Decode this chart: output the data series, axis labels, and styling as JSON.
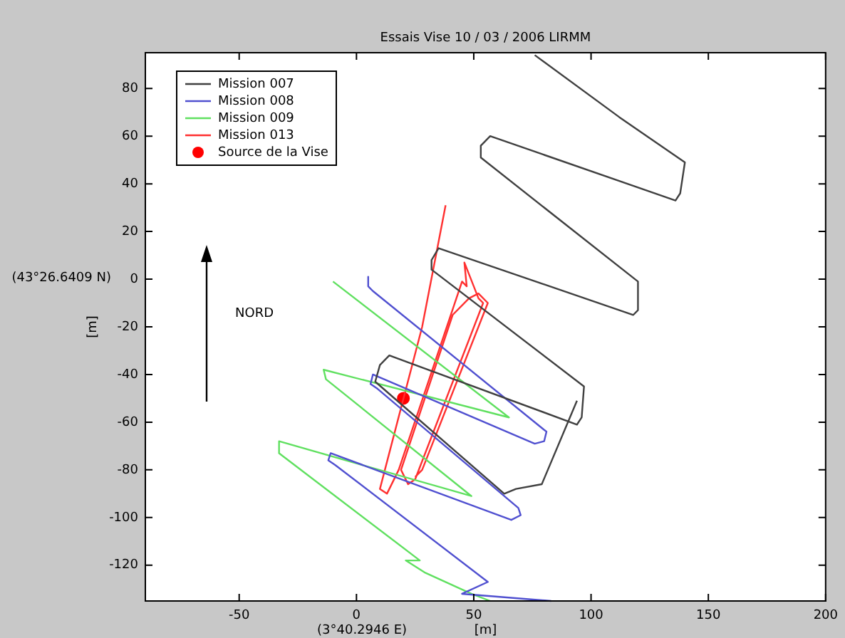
{
  "chart_data": {
    "type": "line",
    "title": "Essais Vise 10 / 03 / 2006 LIRMM",
    "xlabel": "[m]",
    "ylabel": "[m]",
    "xlim": [
      -90,
      200
    ],
    "xticks": [
      -50,
      0,
      50,
      100,
      150,
      200
    ],
    "ylim": [
      -135,
      95
    ],
    "yticks": [
      -120,
      -100,
      -80,
      -60,
      -40,
      -20,
      0,
      20,
      40,
      60,
      80
    ],
    "grid": false,
    "legend": "top left",
    "line_style": "solid",
    "annotations": [
      "(43°26.6409 N)",
      "(3°40.2946 E)",
      "NORD"
    ],
    "series": [
      {
        "name": "Mission 007",
        "type": "line",
        "marker": "none",
        "color": "#404040",
        "x": [
          76,
          112,
          140,
          138,
          136,
          57,
          53,
          53,
          120,
          120,
          118,
          35,
          32,
          32,
          97,
          96,
          94,
          14,
          10,
          8,
          63,
          68,
          79,
          94
        ],
        "values": [
          94,
          68,
          49,
          36,
          33,
          60,
          56,
          51,
          -1,
          -13,
          -15,
          13,
          8,
          4,
          -45,
          -58,
          -61,
          -32,
          -36,
          -43,
          -90,
          -88,
          -86,
          -51
        ]
      },
      {
        "name": "Mission 008",
        "type": "line",
        "marker": "none",
        "color": "#5050d0",
        "x": [
          5,
          5,
          7,
          81,
          80,
          76,
          7,
          6,
          9,
          69,
          70,
          66,
          -11,
          -12,
          -9,
          56,
          45,
          83
        ],
        "values": [
          1,
          -3,
          -5,
          -64,
          -68,
          -69,
          -40,
          -44,
          -46,
          -96,
          -99,
          -101,
          -73,
          -76,
          -78,
          -127,
          -132,
          -135
        ]
      },
      {
        "name": "Mission 009",
        "type": "line",
        "marker": "none",
        "color": "#60e060",
        "x": [
          -10,
          65,
          -14,
          -13,
          49,
          -33,
          -33,
          27,
          21,
          29,
          49,
          57
        ],
        "values": [
          -1,
          -58,
          -38,
          -42,
          -91,
          -68,
          -73,
          -118,
          -118,
          -123,
          -132,
          -135
        ]
      },
      {
        "name": "Mission 013",
        "type": "line",
        "marker": "none",
        "color": "#ff3030",
        "x": [
          38,
          28,
          10,
          13,
          18,
          45,
          47,
          46,
          50,
          52,
          54,
          25,
          22,
          19,
          41,
          48,
          52,
          56,
          28,
          25
        ],
        "values": [
          31,
          -20,
          -88,
          -90,
          -80,
          -1,
          -3,
          7,
          -3,
          -8,
          -10,
          -84,
          -86,
          -80,
          -15,
          -8,
          -6,
          -10,
          -80,
          -83
        ]
      },
      {
        "name": "Source de la Vise",
        "type": "scatter",
        "marker": "circle",
        "color": "#ff0000",
        "x": [
          20
        ],
        "values": [
          -50
        ]
      }
    ]
  }
}
